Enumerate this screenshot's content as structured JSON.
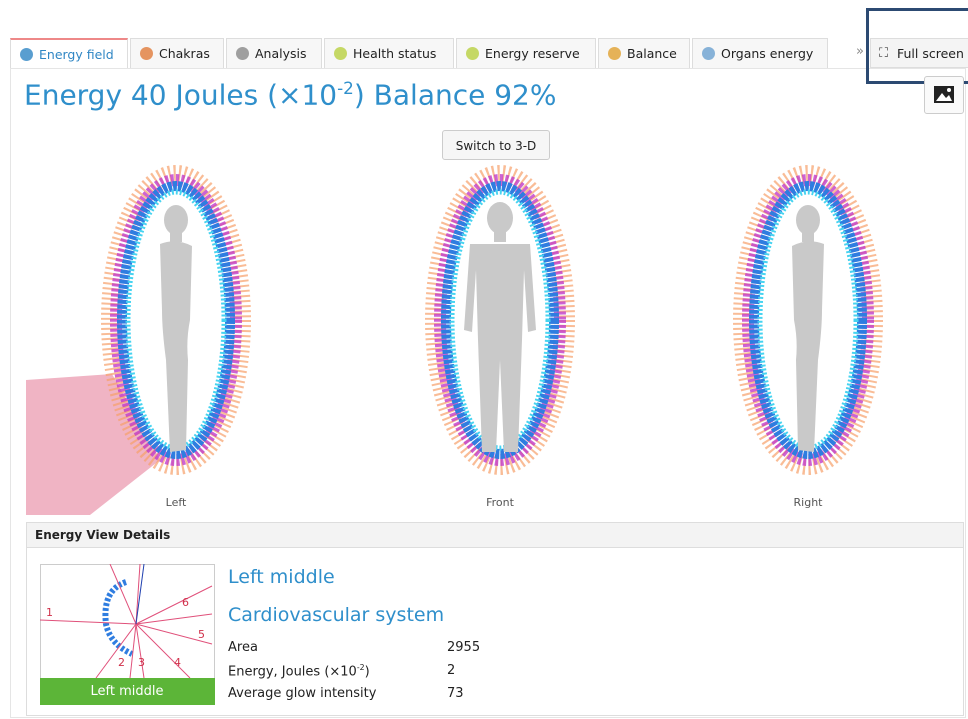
{
  "tabs": [
    "Energy field",
    "Chakras",
    "Analysis",
    "Health status",
    "Energy reserve",
    "Balance",
    "Organs energy"
  ],
  "overflow": "»",
  "fullscreen": "Full screen",
  "headline": {
    "text": "Energy 40 Joules (×10",
    "exponent": "-2",
    "rest": ") Balance 92%"
  },
  "button": "Switch to 3-D",
  "views": [
    "Left",
    "Front",
    "Right"
  ],
  "details": {
    "title": "Energy View Details",
    "segments": [
      1,
      2,
      3,
      4,
      5,
      6
    ],
    "zone": "Left middle",
    "name": "Left middle",
    "system": "Cardiovascular system",
    "rows": [
      {
        "label": "Area",
        "value": 2955
      },
      {
        "label": "Energy, Joules (×10",
        "exponent": "-2",
        "suffix": ")",
        "value": 2
      },
      {
        "label": "Average glow intensity",
        "value": 73
      }
    ]
  }
}
